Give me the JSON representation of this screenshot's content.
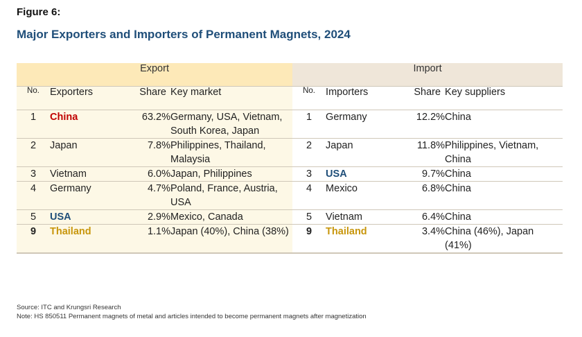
{
  "figure_label": "Figure 6:",
  "title": "Major Exporters and Importers of Permanent Magnets, 2024",
  "groups": {
    "export": "Export",
    "import": "Import"
  },
  "headers": {
    "no": "No.",
    "exporters": "Exporters",
    "share": "Share",
    "key_market": "Key market",
    "importers": "Importers",
    "key_suppliers": "Key suppliers"
  },
  "rows": [
    {
      "ex_no": "1",
      "exporter": "China",
      "ex_share": "63.2%",
      "key_market": "Germany, USA, Vietnam, South Korea, Japan",
      "im_no": "1",
      "importer": "Germany",
      "im_share": "12.2%",
      "key_suppliers": "China"
    },
    {
      "ex_no": "2",
      "exporter": "Japan",
      "ex_share": "7.8%",
      "key_market": "Philippines, Thailand, Malaysia",
      "im_no": "2",
      "importer": "Japan",
      "im_share": "11.8%",
      "key_suppliers": "Philippines, Vietnam, China"
    },
    {
      "ex_no": "3",
      "exporter": "Vietnam",
      "ex_share": "6.0%",
      "key_market": "Japan, Philippines",
      "im_no": "3",
      "importer": "USA",
      "im_share": "9.7%",
      "key_suppliers": "China"
    },
    {
      "ex_no": "4",
      "exporter": "Germany",
      "ex_share": "4.7%",
      "key_market": "Poland, France, Austria, USA",
      "im_no": "4",
      "importer": "Mexico",
      "im_share": "6.8%",
      "key_suppliers": "China"
    },
    {
      "ex_no": "5",
      "exporter": "USA",
      "ex_share": "2.9%",
      "key_market": "Mexico, Canada",
      "im_no": "5",
      "importer": "Vietnam",
      "im_share": "6.4%",
      "key_suppliers": "China"
    },
    {
      "ex_no": "9",
      "exporter": "Thailand",
      "ex_share": "1.1%",
      "key_market": "Japan (40%), China (38%)",
      "im_no": "9",
      "importer": "Thailand",
      "im_share": "3.4%",
      "key_suppliers": "China (46%), Japan (41%)"
    }
  ],
  "source": "Source: ITC and Krungsri Research",
  "note": "Note: HS 850511 Permanent magnets of metal and articles intended to become permanent magnets after magnetization",
  "colors": {
    "title": "#1f4e79",
    "china": "#c00000",
    "usa": "#1f4e79",
    "thailand": "#c8960c",
    "export_header_bg": "#fde9b8",
    "import_header_bg": "#efe6d9",
    "export_body_bg": "#fdf8e6"
  }
}
